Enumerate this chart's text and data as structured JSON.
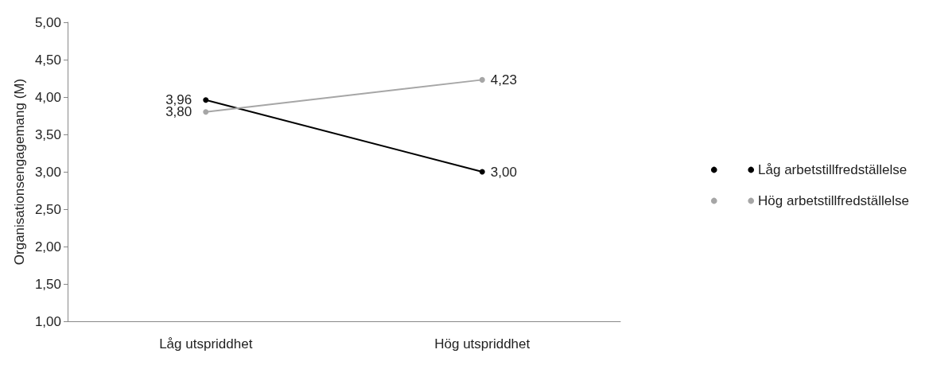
{
  "chart_data": {
    "type": "line",
    "ylabel": "Organisationsengagemang (M)",
    "categories": [
      "Låg utspriddhet",
      "Hög utspriddhet"
    ],
    "series": [
      {
        "name": "Låg arbetstillfredställelse",
        "color": "#000000",
        "values": [
          3.96,
          3.0
        ],
        "value_labels": [
          "3,96",
          "3,00"
        ]
      },
      {
        "name": "Hög arbetstillfredställelse",
        "color": "#a6a6a6",
        "values": [
          3.8,
          4.23
        ],
        "value_labels": [
          "3,80",
          "4,23"
        ]
      }
    ],
    "ylim": [
      1,
      5
    ],
    "yticks": [
      {
        "value": 1,
        "label": "1,00"
      },
      {
        "value": 1.5,
        "label": "1,50"
      },
      {
        "value": 2,
        "label": "2,00"
      },
      {
        "value": 2.5,
        "label": "2,50"
      },
      {
        "value": 3,
        "label": "3,00"
      },
      {
        "value": 3.5,
        "label": "3,50"
      },
      {
        "value": 4,
        "label": "4,00"
      },
      {
        "value": 4.5,
        "label": "4,50"
      },
      {
        "value": 5,
        "label": "5,00"
      }
    ],
    "grid": false,
    "legend": "right",
    "marker": "circle",
    "line_style": "solid"
  }
}
